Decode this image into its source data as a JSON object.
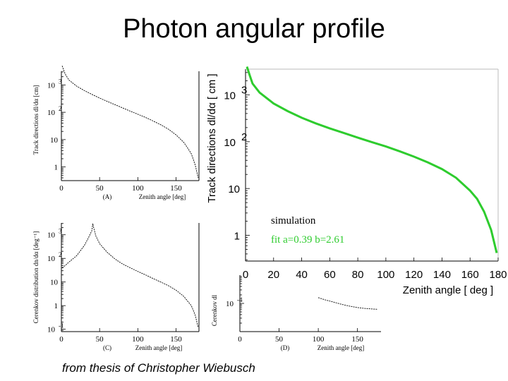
{
  "title": "Photon angular profile",
  "footer": "from thesis of Christopher Wiebusch",
  "colors": {
    "simulation": "#000000",
    "fit": "#2ecc2e"
  },
  "chart_data": [
    {
      "id": "A",
      "type": "line",
      "panel_label": "(A)",
      "xlabel": "Zenith angle [deg]",
      "ylabel": "Track directions dl/dα [cm]",
      "xlim": [
        0,
        180
      ],
      "ylim_log10": [
        -0.5,
        3.5
      ],
      "xticks": [
        "0",
        "50",
        "100",
        "150"
      ],
      "yticks": [
        {
          "base": "10",
          "exp": "3"
        },
        {
          "base": "10",
          "exp": "2"
        },
        {
          "base": "10",
          "exp": ""
        },
        {
          "base": "1",
          "exp": ""
        }
      ],
      "series": [
        {
          "x": [
            1,
            5,
            10,
            20,
            30,
            40,
            50,
            60,
            70,
            80,
            90,
            100,
            110,
            120,
            130,
            140,
            150,
            160,
            165,
            170,
            175,
            179
          ],
          "y": [
            5000,
            2500,
            1500,
            900,
            620,
            450,
            330,
            250,
            190,
            145,
            110,
            85,
            65,
            48,
            35,
            24,
            15,
            8,
            5,
            3,
            1.2,
            0.4
          ]
        }
      ]
    },
    {
      "id": "B",
      "type": "line",
      "xlabel": "Zenith angle [ deg ]",
      "ylabel": "Track directions dl/dα [ cm ]",
      "xlim": [
        0,
        180
      ],
      "ylim_log10": [
        -0.55,
        3.55
      ],
      "xticks": [
        "0",
        "20",
        "40",
        "60",
        "80",
        "100",
        "120",
        "140",
        "160",
        "180"
      ],
      "yticks": [
        {
          "base": "10",
          "exp": "3"
        },
        {
          "base": "10",
          "exp": "2"
        },
        {
          "base": "10",
          "exp": ""
        },
        {
          "base": "1",
          "exp": ""
        }
      ],
      "legend": [
        {
          "text": "simulation"
        },
        {
          "text": "fit a=0.39 b=2.61"
        }
      ],
      "series": [
        {
          "name": "simulation",
          "x": [
            1,
            3,
            5,
            10,
            20,
            30,
            40,
            50,
            60,
            70,
            80,
            90,
            100,
            110,
            120,
            130,
            140,
            150,
            160,
            165,
            170,
            175,
            179
          ],
          "y": [
            3800,
            2500,
            1700,
            1100,
            650,
            450,
            330,
            250,
            195,
            155,
            123,
            98,
            78,
            62,
            48,
            36,
            26,
            17,
            9,
            6,
            3.2,
            1.3,
            0.45
          ]
        },
        {
          "name": "fit a=0.39 b=2.61",
          "x": [
            1,
            3,
            5,
            10,
            20,
            30,
            40,
            50,
            60,
            70,
            80,
            90,
            100,
            110,
            120,
            130,
            140,
            150,
            160,
            165,
            170,
            175,
            179
          ],
          "y": [
            4000,
            2600,
            1750,
            1120,
            655,
            450,
            325,
            247,
            193,
            154,
            122,
            98,
            79,
            62,
            48,
            36,
            26,
            17,
            9,
            6,
            3.2,
            1.3,
            0.42
          ]
        }
      ]
    },
    {
      "id": "C",
      "type": "line",
      "panel_label": "(C)",
      "xlabel": "Zenith angle [deg]",
      "ylabel": "Cerenkov distribution dn/dα [deg⁻¹]",
      "xlim": [
        0,
        180
      ],
      "ylim_log10": [
        -1.1,
        3.5
      ],
      "xticks": [
        "0",
        "50",
        "100",
        "150"
      ],
      "yticks": [
        {
          "base": "10",
          "exp": "3"
        },
        {
          "base": "10",
          "exp": "2"
        },
        {
          "base": "10",
          "exp": ""
        },
        {
          "base": "1",
          "exp": ""
        },
        {
          "base": "10",
          "exp": "-1"
        }
      ],
      "series": [
        {
          "x": [
            1,
            5,
            10,
            20,
            30,
            35,
            40,
            41,
            43,
            45,
            50,
            60,
            70,
            80,
            90,
            100,
            110,
            120,
            130,
            140,
            150,
            160,
            170,
            175,
            179
          ],
          "y": [
            40,
            50,
            70,
            130,
            350,
            700,
            1500,
            3000,
            1600,
            900,
            420,
            180,
            95,
            58,
            40,
            28,
            20,
            14,
            10,
            7,
            4.5,
            2.5,
            1,
            0.4,
            0.12
          ]
        }
      ]
    },
    {
      "id": "D",
      "type": "line",
      "panel_label": "(D)",
      "xlabel": "Zenith angle [deg]",
      "ylabel": "Cerenkov dl",
      "xlim": [
        0,
        180
      ],
      "ylim_log10": [
        -5,
        -3
      ],
      "xticks": [
        "0",
        "50",
        "100",
        "150"
      ],
      "yticks": [
        {
          "base": "10",
          "exp": "-4"
        }
      ],
      "series": [
        {
          "x": [
            100,
            110,
            120,
            130,
            140,
            150,
            160,
            170,
            175
          ],
          "y": [
            0.00016,
            0.00013,
            0.00011,
            9.2e-05,
            8e-05,
            7.1e-05,
            6.6e-05,
            6.3e-05,
            6.2e-05
          ]
        }
      ]
    }
  ]
}
